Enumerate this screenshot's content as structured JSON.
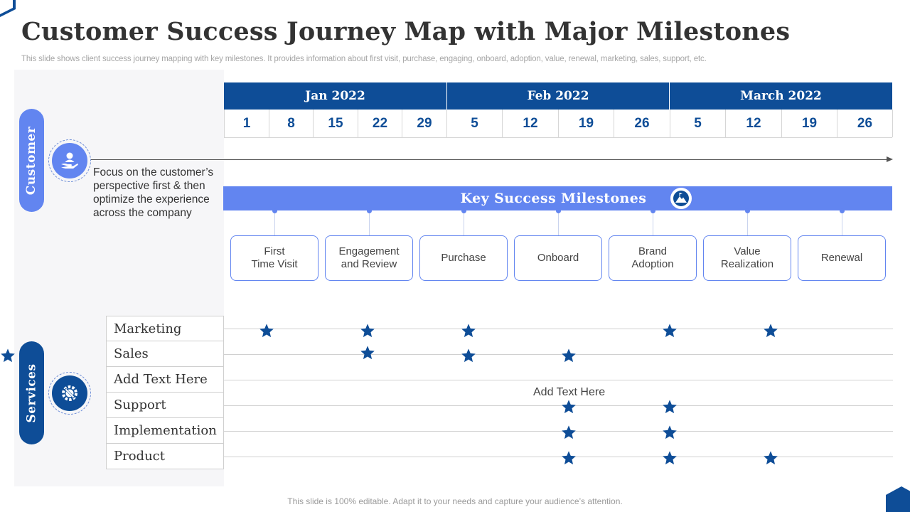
{
  "slide": {
    "title": "Customer Success Journey Map with Major Milestones",
    "subtitle": "This slide shows client success journey mapping with key milestones. It provides information about first visit, purchase, engaging, onboard, adoption, value, renewal, marketing, sales, support, etc.",
    "footer": "This slide is 100% editable. Adapt it to your needs and capture your audience’s attention."
  },
  "colors": {
    "dark_blue": "#0e4d97",
    "light_blue": "#6285f0",
    "star": "#0e4d97"
  },
  "customer": {
    "label": "Customer",
    "icon": "hand-user-icon",
    "description": "Focus on the customer’s perspective first & then optimize the experience across the company"
  },
  "services": {
    "label": "Services",
    "icon": "gear-tools-icon"
  },
  "timeline": {
    "months": [
      {
        "label": "Jan 2022",
        "days": [
          "1",
          "8",
          "15",
          "22",
          "29"
        ]
      },
      {
        "label": "Feb 2022",
        "days": [
          "5",
          "12",
          "19",
          "26"
        ]
      },
      {
        "label": "March 2022",
        "days": [
          "5",
          "12",
          "19",
          "26"
        ]
      }
    ]
  },
  "milestones": {
    "title": "Key Success Milestones",
    "icon": "mountain-flag-icon",
    "items": [
      "First\nTime Visit",
      "Engagement\nand Review",
      "Purchase",
      "Onboard",
      "Brand\nAdoption",
      "Value\nRealization",
      "Renewal"
    ]
  },
  "service_rows": [
    {
      "label": "Marketing",
      "stars": [
        1,
        2,
        3,
        5,
        6
      ]
    },
    {
      "label": "Sales",
      "stars": [
        2,
        3,
        4,
        8
      ]
    },
    {
      "label": "Add Text Here",
      "stars": []
    },
    {
      "label": "Support",
      "stars": [
        4,
        5
      ]
    },
    {
      "label": "Implementation",
      "stars": [
        4,
        5
      ]
    },
    {
      "label": "Product",
      "stars": [
        4,
        5,
        6
      ]
    }
  ],
  "center_note": "Add Text Here"
}
